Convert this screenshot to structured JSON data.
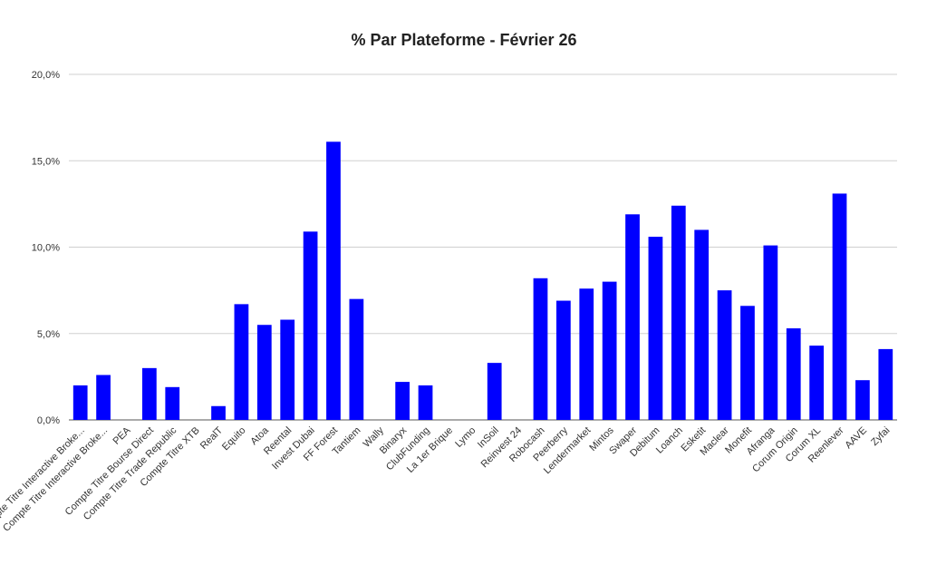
{
  "chart_data": {
    "type": "bar",
    "title": "% Par Plateforme - Février 26",
    "xlabel": "",
    "ylabel": "",
    "ylim": [
      0,
      20
    ],
    "yticks": [
      0,
      5,
      10,
      15,
      20
    ],
    "ytick_labels": [
      "0,0%",
      "5,0%",
      "10,0%",
      "15,0%",
      "20,0%"
    ],
    "grid": true,
    "bar_color": "#0000ff",
    "categories": [
      "Compte Titre Interactive Broke...",
      "Compte Titre Interactive Broke...",
      "PEA",
      "Compte Titre Bourse Direct",
      "Compte Titre Trade Republic",
      "Compte Titre XTB",
      "RealT",
      "Equito",
      "Atoa",
      "Reental",
      "Invest Dubai",
      "FF Forest",
      "Tantiem",
      "Wally",
      "Binaryx",
      "ClubFunding",
      "La 1er Brique",
      "Lymo",
      "InSoil",
      "Reinvest 24",
      "Robocash",
      "Peerberry",
      "Lendermarket",
      "Mintos",
      "Swaper",
      "Debitum",
      "Loanch",
      "Esketit",
      "Maclear",
      "Monefit",
      "Afranga",
      "Corum Origin",
      "Corum XL",
      "Reenlever",
      "AAVE",
      "Zyfai"
    ],
    "values": [
      2.0,
      2.6,
      0,
      3.0,
      1.9,
      0,
      0.8,
      6.7,
      5.5,
      5.8,
      10.9,
      16.1,
      7.0,
      0,
      2.2,
      2.0,
      0,
      0,
      3.3,
      0,
      8.2,
      6.9,
      7.6,
      8.0,
      11.9,
      10.6,
      12.4,
      11.0,
      7.5,
      6.6,
      10.1,
      5.3,
      4.3,
      13.1,
      2.3,
      4.1
    ]
  }
}
